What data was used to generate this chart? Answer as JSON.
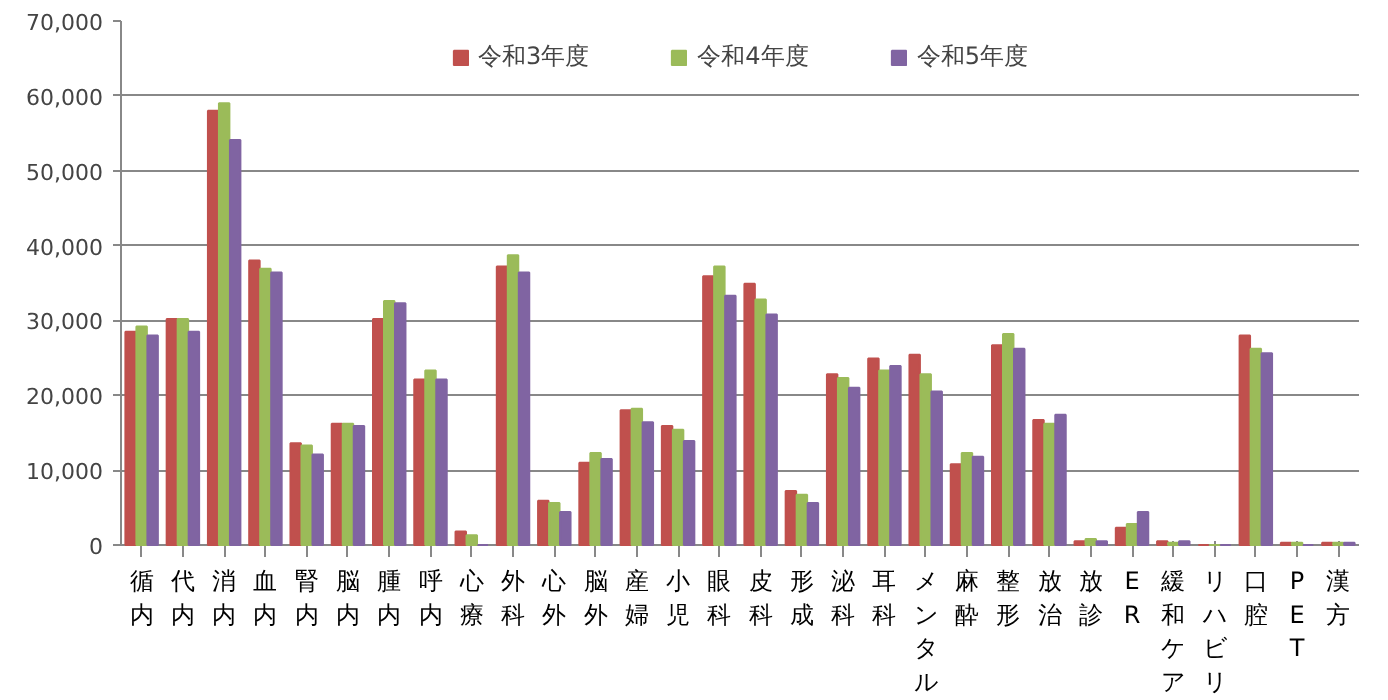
{
  "chart_data": {
    "type": "bar",
    "categories": [
      "循内",
      "代内",
      "消内",
      "血内",
      "腎内",
      "脳内",
      "腫内",
      "呼内",
      "心療",
      "外科",
      "心外",
      "脳外",
      "産婦",
      "小児",
      "眼科",
      "皮科",
      "形成",
      "泌科",
      "耳科",
      "メンタル",
      "麻酔",
      "整形",
      "放治",
      "放診",
      "ER",
      "緩和ケア",
      "リハビリ",
      "口腔",
      "PET",
      "漢方"
    ],
    "series": [
      {
        "name": "令和3年度",
        "color": "#c0504d",
        "values": [
          28500,
          30200,
          58000,
          38000,
          13600,
          16200,
          30200,
          22100,
          1800,
          37200,
          5900,
          11000,
          18000,
          15900,
          35900,
          34900,
          7200,
          22800,
          24900,
          25400,
          10800,
          26700,
          16700,
          500,
          2300,
          500,
          0,
          28000,
          300,
          300
        ]
      },
      {
        "name": "令和4年度",
        "color": "#9bbb59",
        "values": [
          29200,
          30200,
          59000,
          36900,
          13300,
          16200,
          32600,
          23300,
          1300,
          38700,
          5600,
          12300,
          18200,
          15400,
          37200,
          32800,
          6700,
          22300,
          23300,
          22800,
          12300,
          28200,
          16200,
          800,
          2800,
          300,
          0,
          26200,
          300,
          300
        ]
      },
      {
        "name": "令和5年度",
        "color": "#8064a2",
        "values": [
          28000,
          28500,
          54100,
          36400,
          12100,
          15900,
          32300,
          22100,
          0,
          36400,
          4400,
          11500,
          16400,
          13900,
          33300,
          30800,
          5600,
          21000,
          23900,
          20500,
          11800,
          26200,
          17400,
          500,
          4400,
          500,
          0,
          25600,
          0,
          300
        ]
      }
    ],
    "ylim": [
      0,
      70000
    ],
    "yticks": [
      0,
      {
        "value": 10000,
        "label": "10,000"
      },
      {
        "value": 20000,
        "label": "20,000"
      },
      {
        "value": 30000,
        "label": "30,000"
      },
      {
        "value": 40000,
        "label": "40,000"
      },
      {
        "value": 50000,
        "label": "50,000"
      },
      {
        "value": 60000,
        "label": "60,000"
      },
      {
        "value": 70000,
        "label": "70,000"
      }
    ],
    "grid": "y",
    "legend": "top"
  }
}
